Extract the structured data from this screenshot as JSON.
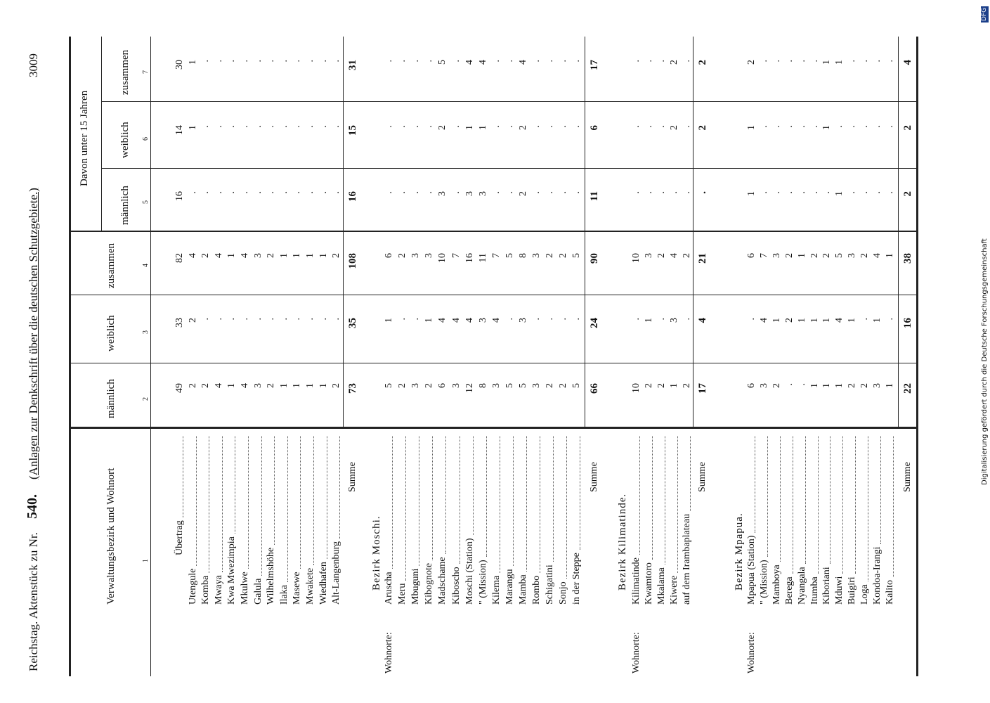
{
  "header": {
    "left": "Reichstag. Aktenstück zu Nr.",
    "number": "540.",
    "right": "(Anlagen zur Denkschrift über die deutschen Schutzgebiete.)",
    "page": "3009"
  },
  "columns": {
    "place": "Verwaltungsbezirk und Wohnort",
    "male": "männlich",
    "female": "weiblich",
    "total": "zusammen",
    "under15": "Davon unter 15 Jahren",
    "male15": "männlich",
    "female15": "weiblich",
    "total15": "zusammen",
    "numbers": [
      "1",
      "2",
      "3",
      "4",
      "5",
      "6",
      "7"
    ]
  },
  "sections": [
    {
      "rows": [
        {
          "name": "Übertrag",
          "values": [
            49,
            33,
            82,
            16,
            14,
            30
          ]
        },
        {
          "name": "Utengule",
          "values": [
            2,
            2,
            4,
            ".",
            1,
            1
          ]
        },
        {
          "name": "Komba",
          "values": [
            2,
            ".",
            2,
            ".",
            ".",
            "."
          ]
        },
        {
          "name": "Mwaya",
          "values": [
            4,
            ".",
            4,
            ".",
            ".",
            "."
          ]
        },
        {
          "name": "Kwa Mwezimpia",
          "values": [
            1,
            ".",
            1,
            ".",
            ".",
            "."
          ]
        },
        {
          "name": "Mkulwe",
          "values": [
            4,
            ".",
            4,
            ".",
            ".",
            "."
          ]
        },
        {
          "name": "Galula",
          "values": [
            3,
            ".",
            3,
            ".",
            ".",
            "."
          ]
        },
        {
          "name": "Wilhelmshöhe",
          "values": [
            2,
            ".",
            2,
            ".",
            ".",
            "."
          ]
        },
        {
          "name": "Ilaka",
          "values": [
            1,
            ".",
            1,
            ".",
            ".",
            "."
          ]
        },
        {
          "name": "Masewe",
          "values": [
            1,
            ".",
            1,
            ".",
            ".",
            "."
          ]
        },
        {
          "name": "Mwakete",
          "values": [
            1,
            ".",
            1,
            ".",
            ".",
            "."
          ]
        },
        {
          "name": "Wiedhafen",
          "values": [
            1,
            ".",
            1,
            ".",
            ".",
            "."
          ]
        },
        {
          "name": "Alt-Langenburg",
          "values": [
            2,
            ".",
            2,
            ".",
            ".",
            "."
          ]
        }
      ],
      "sum": {
        "label": "Summe",
        "values": [
          73,
          35,
          108,
          16,
          15,
          31
        ]
      }
    },
    {
      "title": "Bezirk Moschi.",
      "wohnorte": "Wohnorte:",
      "rows": [
        {
          "name": "Aruscha",
          "values": [
            5,
            1,
            6,
            ".",
            ".",
            "."
          ]
        },
        {
          "name": "Meru",
          "values": [
            2,
            ".",
            2,
            ".",
            ".",
            "."
          ]
        },
        {
          "name": "Mbuguni",
          "values": [
            3,
            ".",
            3,
            ".",
            ".",
            "."
          ]
        },
        {
          "name": "Kibognote",
          "values": [
            2,
            1,
            3,
            ".",
            ".",
            "."
          ]
        },
        {
          "name": "Madschame",
          "values": [
            6,
            4,
            10,
            3,
            2,
            5
          ]
        },
        {
          "name": "Kiboscho",
          "values": [
            3,
            4,
            7,
            ".",
            ".",
            "."
          ]
        },
        {
          "name": "Moschi (Station)",
          "values": [
            12,
            4,
            16,
            3,
            1,
            4
          ]
        },
        {
          "name": "\" (Mission)",
          "values": [
            8,
            3,
            11,
            3,
            1,
            4
          ]
        },
        {
          "name": "Kilema",
          "values": [
            3,
            4,
            7,
            ".",
            ".",
            "."
          ]
        },
        {
          "name": "Marangu",
          "values": [
            5,
            ".",
            5,
            ".",
            ".",
            "."
          ]
        },
        {
          "name": "Mamba",
          "values": [
            5,
            3,
            8,
            2,
            2,
            4
          ]
        },
        {
          "name": "Rombo",
          "values": [
            3,
            ".",
            3,
            ".",
            ".",
            "."
          ]
        },
        {
          "name": "Schigatini",
          "values": [
            2,
            ".",
            2,
            ".",
            ".",
            "."
          ]
        },
        {
          "name": "Sonjo",
          "values": [
            2,
            ".",
            2,
            ".",
            ".",
            "."
          ]
        },
        {
          "name": "in der Steppe",
          "values": [
            5,
            ".",
            5,
            ".",
            ".",
            "."
          ]
        }
      ],
      "sum": {
        "label": "Summe",
        "values": [
          66,
          24,
          90,
          11,
          6,
          17
        ]
      }
    },
    {
      "title": "Bezirk Kilimatinde.",
      "wohnorte": "Wohnorte:",
      "rows": [
        {
          "name": "Kilimatinde",
          "values": [
            10,
            ".",
            10,
            ".",
            ".",
            "."
          ]
        },
        {
          "name": "Kwamtoro",
          "values": [
            2,
            1,
            3,
            ".",
            ".",
            "."
          ]
        },
        {
          "name": "Mkalama",
          "values": [
            2,
            ".",
            2,
            ".",
            ".",
            "."
          ]
        },
        {
          "name": "Kiwere",
          "values": [
            1,
            3,
            4,
            ".",
            2,
            2
          ]
        },
        {
          "name": "auf dem Irambaplateau",
          "values": [
            2,
            ".",
            2,
            ".",
            ".",
            "."
          ]
        }
      ],
      "sum": {
        "label": "Summe",
        "values": [
          17,
          4,
          21,
          ".",
          2,
          2
        ]
      }
    },
    {
      "title": "Bezirk Mpapua.",
      "wohnorte": "Wohnorte:",
      "rows": [
        {
          "name": "Mpapua (Station)",
          "values": [
            6,
            ".",
            6,
            1,
            1,
            2
          ]
        },
        {
          "name": "\" (Mission)",
          "values": [
            3,
            4,
            7,
            ".",
            ".",
            "."
          ]
        },
        {
          "name": "Mamboya",
          "values": [
            2,
            1,
            3,
            ".",
            ".",
            "."
          ]
        },
        {
          "name": "Berega",
          "values": [
            ".",
            2,
            2,
            ".",
            ".",
            "."
          ]
        },
        {
          "name": "Nyangala",
          "values": [
            ".",
            1,
            1,
            ".",
            ".",
            "."
          ]
        },
        {
          "name": "Itumba",
          "values": [
            1,
            1,
            2,
            ".",
            ".",
            "."
          ]
        },
        {
          "name": "Kiboriani",
          "values": [
            1,
            1,
            2,
            ".",
            1,
            1
          ]
        },
        {
          "name": "Mduwi",
          "values": [
            1,
            4,
            5,
            1,
            ".",
            1
          ]
        },
        {
          "name": "Buigiri",
          "values": [
            2,
            1,
            3,
            ".",
            ".",
            "."
          ]
        },
        {
          "name": "Loga",
          "values": [
            2,
            ".",
            2,
            ".",
            ".",
            "."
          ]
        },
        {
          "name": "Kondoa-Irangi",
          "values": [
            3,
            1,
            4,
            ".",
            ".",
            "."
          ]
        },
        {
          "name": "Kalito",
          "values": [
            1,
            ".",
            1,
            ".",
            ".",
            "."
          ]
        }
      ],
      "sum": {
        "label": "Summe",
        "values": [
          22,
          16,
          38,
          2,
          2,
          4
        ]
      }
    }
  ],
  "footer": {
    "credit": "Digitalisierung gefördert durch die Deutsche Forschungsgemeinschaft",
    "logo": "DFG"
  }
}
